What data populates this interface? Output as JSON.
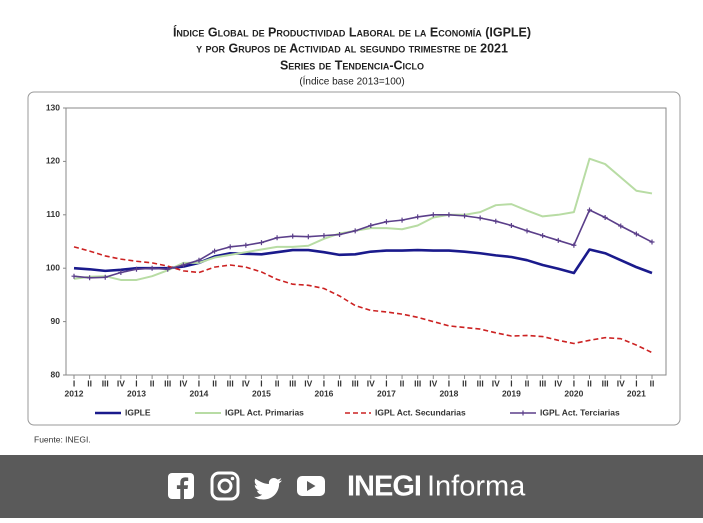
{
  "chart_data": {
    "type": "line",
    "title_lines": [
      "Índice Global de Productividad Laboral de la Economía (IGPLE)",
      "y por Grupos de Actividad al segundo trimestre de 2021",
      "Series de Tendencia-Ciclo"
    ],
    "subtitle": "(Índice base 2013=100)",
    "source": "Fuente: INEGI.",
    "categories": [
      "I",
      "II",
      "III",
      "IV",
      "I",
      "II",
      "III",
      "IV",
      "I",
      "II",
      "III",
      "IV",
      "I",
      "II",
      "III",
      "IV",
      "I",
      "II",
      "III",
      "IV",
      "I",
      "II",
      "III",
      "IV",
      "I",
      "II",
      "III",
      "IV",
      "I",
      "II",
      "III",
      "IV",
      "I",
      "II",
      "III",
      "IV",
      "I",
      "II"
    ],
    "x_group_labels": [
      "2012",
      null,
      null,
      null,
      "2013",
      null,
      null,
      null,
      "2014",
      null,
      null,
      null,
      "2015",
      null,
      null,
      null,
      "2016",
      null,
      null,
      null,
      "2017",
      null,
      null,
      null,
      "2018",
      null,
      null,
      null,
      "2019",
      null,
      null,
      null,
      "2020",
      null,
      null,
      null,
      "2021",
      null
    ],
    "ylim": [
      80,
      130
    ],
    "yticks": [
      80,
      90,
      100,
      110,
      120,
      130
    ],
    "series": [
      {
        "name": "IGPLE",
        "color": "#1a1a8c",
        "width": 2.6,
        "dashed": false,
        "markers": false,
        "values": [
          100,
          99.8,
          99.5,
          99.7,
          100,
          100,
          100,
          100.3,
          101,
          102.2,
          102.8,
          102.7,
          102.6,
          103,
          103.4,
          103.4,
          103,
          102.5,
          102.6,
          103.1,
          103.3,
          103.3,
          103.4,
          103.3,
          103.3,
          103.1,
          102.8,
          102.4,
          102.1,
          101.5,
          100.6,
          99.9,
          99.1,
          103.5,
          102.8,
          101.5,
          100.2,
          99.1
        ]
      },
      {
        "name": "IGPL Act. Primarias",
        "color": "#b8dca4",
        "width": 2,
        "dashed": false,
        "markers": false,
        "values": [
          98,
          98.4,
          98.5,
          97.8,
          97.8,
          98.5,
          99.6,
          101,
          101,
          102,
          102.5,
          103,
          103.5,
          104,
          104,
          104.2,
          105.5,
          106.5,
          107,
          107.5,
          107.5,
          107.3,
          108,
          109.5,
          110,
          110,
          110.5,
          111.8,
          112,
          110.8,
          109.7,
          110,
          110.5,
          120.5,
          119.5,
          117,
          114.5,
          114
        ]
      },
      {
        "name": "IGPL Act. Secundarias",
        "color": "#cc2222",
        "width": 1.6,
        "dashed": true,
        "markers": false,
        "values": [
          104,
          103.2,
          102.3,
          101.7,
          101.3,
          101,
          100.4,
          99.5,
          99.2,
          100.2,
          100.6,
          100.2,
          99.3,
          97.9,
          97,
          96.8,
          96.2,
          94.8,
          93,
          92.1,
          91.8,
          91.4,
          90.8,
          90,
          89.2,
          88.9,
          88.6,
          87.9,
          87.3,
          87.4,
          87.2,
          86.5,
          85.9,
          86.5,
          87,
          86.8,
          85.6,
          84.2
        ]
      },
      {
        "name": "IGPL Act. Terciarias",
        "color": "#5b3f8a",
        "width": 1.6,
        "dashed": false,
        "markers": true,
        "values": [
          98.5,
          98.2,
          98.3,
          99.2,
          99.8,
          100,
          99.8,
          100.6,
          101.5,
          103.2,
          104,
          104.3,
          104.8,
          105.7,
          106,
          105.9,
          106.1,
          106.3,
          107,
          108,
          108.7,
          109,
          109.6,
          110,
          110,
          109.8,
          109.4,
          108.8,
          108,
          107,
          106.1,
          105.2,
          104.3,
          110.9,
          109.5,
          107.9,
          106.4,
          104.9
        ]
      }
    ]
  },
  "footer": {
    "brand": "INEGI",
    "brand_suffix": "Informa"
  }
}
